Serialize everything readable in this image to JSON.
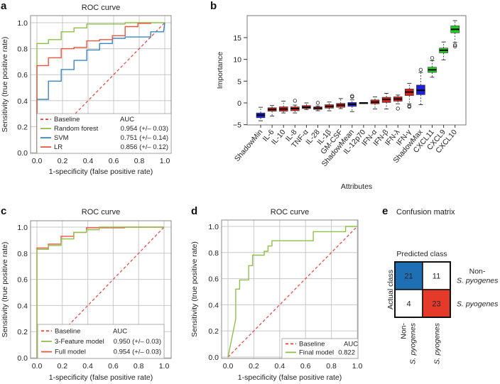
{
  "figure": {
    "panels": [
      "a",
      "b",
      "c",
      "d",
      "e"
    ]
  },
  "chart_data": [
    {
      "id": "a",
      "type": "line",
      "letter": "a",
      "title": "ROC curve",
      "xlabel": "1-specificity (false positive rate)",
      "ylabel": "Sensitivity (true positive rate)",
      "xlim": [
        0,
        1
      ],
      "ylim": [
        0,
        1
      ],
      "xticks": [
        "0.0",
        "0.2",
        "0.4",
        "0.6",
        "0.8",
        "1.0"
      ],
      "yticks": [
        "0.0",
        "0.2",
        "0.4",
        "0.6",
        "0.8",
        "1.0"
      ],
      "grid": true,
      "legend_position": "bottom-right",
      "legend_header": "AUC",
      "series": [
        {
          "name": "Baseline",
          "color": "#e8413a",
          "dashed": true,
          "auc": "",
          "points": [
            [
              0,
              0
            ],
            [
              1,
              1
            ]
          ]
        },
        {
          "name": "Random forest",
          "color": "#8fbf4a",
          "dashed": false,
          "auc": "0.954 (+/– 0.03)",
          "points": [
            [
              0,
              0
            ],
            [
              0,
              0.84
            ],
            [
              0.09,
              0.84
            ],
            [
              0.09,
              0.87
            ],
            [
              0.19,
              0.87
            ],
            [
              0.19,
              0.93
            ],
            [
              0.29,
              0.93
            ],
            [
              0.29,
              0.96
            ],
            [
              0.39,
              0.96
            ],
            [
              0.39,
              0.99
            ],
            [
              0.69,
              0.99
            ],
            [
              0.69,
              1.0
            ],
            [
              1,
              1
            ]
          ]
        },
        {
          "name": "SVM",
          "color": "#3a86c4",
          "dashed": false,
          "auc": "0.751 (+/– 0.14)",
          "points": [
            [
              0,
              0
            ],
            [
              0,
              0.41
            ],
            [
              0.09,
              0.41
            ],
            [
              0.09,
              0.55
            ],
            [
              0.19,
              0.55
            ],
            [
              0.19,
              0.64
            ],
            [
              0.29,
              0.64
            ],
            [
              0.29,
              0.71
            ],
            [
              0.39,
              0.71
            ],
            [
              0.39,
              0.79
            ],
            [
              0.49,
              0.79
            ],
            [
              0.49,
              0.84
            ],
            [
              0.59,
              0.84
            ],
            [
              0.59,
              0.88
            ],
            [
              0.69,
              0.88
            ],
            [
              0.69,
              0.89
            ],
            [
              0.89,
              0.89
            ],
            [
              0.89,
              0.93
            ],
            [
              0.99,
              0.93
            ],
            [
              1,
              1
            ]
          ]
        },
        {
          "name": "LR",
          "color": "#e8563f",
          "dashed": false,
          "auc": "0.856 (+/– 0.12)",
          "points": [
            [
              0,
              0
            ],
            [
              0,
              0.67
            ],
            [
              0.09,
              0.67
            ],
            [
              0.09,
              0.73
            ],
            [
              0.19,
              0.73
            ],
            [
              0.19,
              0.8
            ],
            [
              0.29,
              0.8
            ],
            [
              0.29,
              0.81
            ],
            [
              0.39,
              0.81
            ],
            [
              0.39,
              0.86
            ],
            [
              0.49,
              0.86
            ],
            [
              0.49,
              0.87
            ],
            [
              0.59,
              0.87
            ],
            [
              0.59,
              0.9
            ],
            [
              0.69,
              0.9
            ],
            [
              0.69,
              0.97
            ],
            [
              0.79,
              0.97
            ],
            [
              0.79,
              0.995
            ],
            [
              0.89,
              0.995
            ],
            [
              0.89,
              1.0
            ]
          ]
        }
      ]
    },
    {
      "id": "b",
      "type": "box",
      "letter": "b",
      "title": "",
      "xlabel": "Attributes",
      "ylabel": "Importance",
      "ylim": [
        -5,
        19.5
      ],
      "yticks": [
        -5,
        0,
        5,
        10,
        15
      ],
      "grid": false,
      "colors": {
        "shadow": "#1f1fd6",
        "rejected": "#d61f1f",
        "confirmed": "#22cc22"
      },
      "boxes": [
        {
          "name": "ShadowMin",
          "group": "shadow",
          "median": -2.8,
          "q1": -3.4,
          "q3": -2.3,
          "low": -4.1,
          "high": -1.0,
          "outliers": []
        },
        {
          "name": "IL-6",
          "group": "rejected",
          "median": -1.5,
          "q1": -1.9,
          "q3": -1.1,
          "low": -3.0,
          "high": -0.6,
          "outliers": []
        },
        {
          "name": "IL-10",
          "group": "rejected",
          "median": -1.4,
          "q1": -1.9,
          "q3": -0.9,
          "low": -2.3,
          "high": 0.4,
          "outliers": []
        },
        {
          "name": "IL-8",
          "group": "rejected",
          "median": -1.3,
          "q1": -1.8,
          "q3": -0.9,
          "low": -2.3,
          "high": -0.5,
          "outliers": [
            0.5
          ]
        },
        {
          "name": "TNF-α",
          "group": "rejected",
          "median": -1.0,
          "q1": -1.3,
          "q3": -0.6,
          "low": -1.5,
          "high": 0.0,
          "outliers": []
        },
        {
          "name": "IL-28",
          "group": "rejected",
          "median": -1.2,
          "q1": -1.5,
          "q3": -0.9,
          "low": -1.8,
          "high": -0.7,
          "outliers": [
            0.0
          ]
        },
        {
          "name": "IL-1β",
          "group": "rejected",
          "median": -0.8,
          "q1": -1.2,
          "q3": -0.4,
          "low": -1.8,
          "high": 0.2,
          "outliers": []
        },
        {
          "name": "GM-CSF",
          "group": "rejected",
          "median": -0.5,
          "q1": -1.0,
          "q3": -0.1,
          "low": -1.3,
          "high": 1.0,
          "outliers": []
        },
        {
          "name": "ShadowMean",
          "group": "shadow",
          "median": -0.3,
          "q1": -0.8,
          "q3": 0.1,
          "low": -2.0,
          "high": 0.7,
          "outliers": [
            1.4,
            1.6
          ]
        },
        {
          "name": "IL-12p70",
          "group": "rejected",
          "median": 0.0,
          "q1": -0.05,
          "q3": 0.05,
          "low": 0.0,
          "high": 0.0,
          "outliers": []
        },
        {
          "name": "IFN-α",
          "group": "rejected",
          "median": 0.2,
          "q1": -0.2,
          "q3": 0.7,
          "low": -1.4,
          "high": 1.4,
          "outliers": []
        },
        {
          "name": "IFN-β",
          "group": "rejected",
          "median": 0.8,
          "q1": 0.1,
          "q3": 1.3,
          "low": -1.4,
          "high": 2.2,
          "outliers": []
        },
        {
          "name": "IFN-λ",
          "group": "rejected",
          "median": 0.9,
          "q1": 0.4,
          "q3": 1.4,
          "low": -0.2,
          "high": 1.8,
          "outliers": [
            -1.3
          ]
        },
        {
          "name": "IFN-γ",
          "group": "rejected",
          "median": 2.5,
          "q1": 1.7,
          "q3": 3.2,
          "low": -0.2,
          "high": 4.5,
          "outliers": [
            -0.7,
            -0.9
          ]
        },
        {
          "name": "ShadowMax",
          "group": "shadow",
          "median": 2.9,
          "q1": 1.9,
          "q3": 4.1,
          "low": -0.4,
          "high": 7.0,
          "outliers": [
            7.6
          ]
        },
        {
          "name": "CXCL11",
          "group": "confirmed",
          "median": 7.6,
          "q1": 7.0,
          "q3": 8.2,
          "low": 5.9,
          "high": 9.7,
          "outliers": [
            10.3
          ]
        },
        {
          "name": "CXCL9",
          "group": "confirmed",
          "median": 12.1,
          "q1": 11.5,
          "q3": 12.6,
          "low": 9.9,
          "high": 14.0,
          "outliers": []
        },
        {
          "name": "CXCL10",
          "group": "confirmed",
          "median": 16.9,
          "q1": 16.1,
          "q3": 17.7,
          "low": 13.9,
          "high": 18.9,
          "outliers": [
            13.0,
            13.3
          ]
        }
      ]
    },
    {
      "id": "c",
      "type": "line",
      "letter": "c",
      "title": "ROC curve",
      "xlabel": "1-specificity (false positive rate)",
      "ylabel": "Sensitivity (true positive rate)",
      "xlim": [
        0,
        1
      ],
      "ylim": [
        0,
        1
      ],
      "xticks": [
        "0.0",
        "0.2",
        "0.4",
        "0.6",
        "0.8",
        "1.0"
      ],
      "yticks": [
        "0.0",
        "0.2",
        "0.4",
        "0.6",
        "0.8",
        "1.0"
      ],
      "grid": true,
      "legend_position": "bottom-right",
      "legend_header": "AUC",
      "series": [
        {
          "name": "Baseline",
          "color": "#e8413a",
          "dashed": true,
          "auc": "",
          "points": [
            [
              0,
              0
            ],
            [
              1,
              1
            ]
          ]
        },
        {
          "name": "Full model",
          "color": "#e8563f",
          "dashed": false,
          "auc": "0.954 (+/– 0.03)",
          "legend_order": 2,
          "points": [
            [
              0,
              0
            ],
            [
              0,
              0.84
            ],
            [
              0.09,
              0.84
            ],
            [
              0.09,
              0.87
            ],
            [
              0.19,
              0.87
            ],
            [
              0.19,
              0.93
            ],
            [
              0.29,
              0.93
            ],
            [
              0.29,
              0.96
            ],
            [
              0.39,
              0.96
            ],
            [
              0.39,
              0.995
            ],
            [
              0.69,
              0.995
            ],
            [
              0.69,
              1.0
            ],
            [
              1,
              1
            ]
          ]
        },
        {
          "name": "3-Feature model",
          "color": "#8fbf4a",
          "dashed": false,
          "auc": "0.950 (+/– 0.03)",
          "legend_order": 1,
          "points": [
            [
              0,
              0
            ],
            [
              0,
              0.83
            ],
            [
              0.09,
              0.83
            ],
            [
              0.09,
              0.86
            ],
            [
              0.19,
              0.86
            ],
            [
              0.19,
              0.91
            ],
            [
              0.29,
              0.91
            ],
            [
              0.29,
              0.96
            ],
            [
              0.39,
              0.96
            ],
            [
              0.39,
              0.98
            ],
            [
              0.49,
              0.98
            ],
            [
              0.49,
              1.0
            ],
            [
              1,
              1
            ]
          ]
        }
      ]
    },
    {
      "id": "d",
      "type": "line",
      "letter": "d",
      "title": "ROC curve",
      "xlabel": "1-specificity (false positive rate)",
      "ylabel": "Sensitivity (true positive rate)",
      "xlim": [
        0,
        1
      ],
      "ylim": [
        0,
        1
      ],
      "xticks": [
        "0.0",
        "0.2",
        "0.4",
        "0.6",
        "0.8",
        "1.0"
      ],
      "yticks": [
        "0.0",
        "0.2",
        "0.4",
        "0.6",
        "0.8",
        "1.0"
      ],
      "grid": true,
      "legend_position": "bottom-right",
      "legend_header": "AUC",
      "series": [
        {
          "name": "Baseline",
          "color": "#e8413a",
          "dashed": true,
          "auc": "",
          "points": [
            [
              0,
              0
            ],
            [
              1,
              1
            ]
          ]
        },
        {
          "name": "Final model",
          "color": "#8fbf4a",
          "dashed": false,
          "auc": "0.822",
          "points": [
            [
              0,
              0
            ],
            [
              0.06,
              0.29
            ],
            [
              0.06,
              0.52
            ],
            [
              0.09,
              0.52
            ],
            [
              0.09,
              0.59
            ],
            [
              0.16,
              0.59
            ],
            [
              0.16,
              0.7
            ],
            [
              0.19,
              0.7
            ],
            [
              0.19,
              0.78
            ],
            [
              0.28,
              0.78
            ],
            [
              0.28,
              0.81
            ],
            [
              0.31,
              0.81
            ],
            [
              0.31,
              0.85
            ],
            [
              0.34,
              0.85
            ],
            [
              0.34,
              0.89
            ],
            [
              0.66,
              0.89
            ],
            [
              0.66,
              0.96
            ],
            [
              0.91,
              0.96
            ],
            [
              0.91,
              1.0
            ],
            [
              1,
              1
            ]
          ]
        }
      ]
    },
    {
      "id": "e",
      "type": "heatmap",
      "letter": "e",
      "title": "Confusion matrix",
      "predicted_label": "Predicted class",
      "actual_label": "Actual class",
      "rows": [
        {
          "label_line1": "Non-",
          "label_line2": "S. pyogenes"
        },
        {
          "label_line1": "",
          "label_line2": "S. pyogenes"
        }
      ],
      "cols": [
        {
          "label_line1": "Non-",
          "label_line2": "S. pyogenes"
        },
        {
          "label_line1": "",
          "label_line2": "S. pyogenes"
        }
      ],
      "values": [
        [
          21,
          11
        ],
        [
          4,
          23
        ]
      ],
      "cell_colors": [
        [
          "#1f6fb4",
          "#ffffff"
        ],
        [
          "#ffffff",
          "#e53a2a"
        ]
      ]
    }
  ]
}
